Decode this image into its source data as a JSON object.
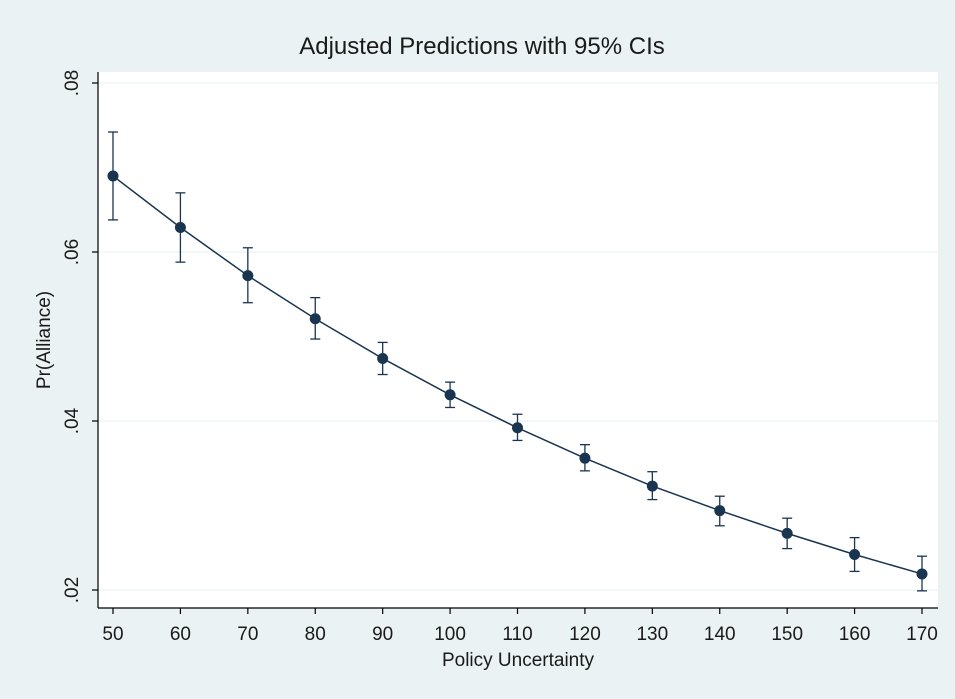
{
  "chart_data": {
    "type": "line",
    "title": "Adjusted Predictions with 95% CIs",
    "xlabel": "Policy Uncertainty",
    "ylabel": "Pr(Alliance)",
    "x": [
      50,
      60,
      70,
      80,
      90,
      100,
      110,
      120,
      130,
      140,
      150,
      160,
      170
    ],
    "series": [
      {
        "values": [
          0.069,
          0.0629,
          0.0572,
          0.0521,
          0.0474,
          0.0431,
          0.0392,
          0.0356,
          0.0323,
          0.0294,
          0.0267,
          0.0242,
          0.0219
        ],
        "ci_low": [
          0.0638,
          0.0588,
          0.054,
          0.0497,
          0.0455,
          0.0416,
          0.0377,
          0.0341,
          0.0307,
          0.0276,
          0.0249,
          0.0222,
          0.0199
        ],
        "ci_high": [
          0.0742,
          0.067,
          0.0605,
          0.0546,
          0.0493,
          0.0446,
          0.0408,
          0.0372,
          0.034,
          0.0311,
          0.0285,
          0.0262,
          0.024
        ]
      }
    ],
    "xlim": [
      50,
      170
    ],
    "ylim": [
      0.02,
      0.08
    ],
    "xticks": [
      50,
      60,
      70,
      80,
      90,
      100,
      110,
      120,
      130,
      140,
      150,
      160,
      170
    ],
    "xtick_labels": [
      "50",
      "60",
      "70",
      "80",
      "90",
      "100",
      "110",
      "120",
      "130",
      "140",
      "150",
      "160",
      "170"
    ],
    "yticks": [
      0.02,
      0.04,
      0.06,
      0.08
    ],
    "ytick_labels": [
      ".02",
      ".04",
      ".06",
      ".08"
    ],
    "grid": true,
    "colors": {
      "background": "#eaf2f3",
      "plot_area": "#ffffff",
      "series": "#1a3550",
      "gridline": "#eaf2f3",
      "axis": "#000000"
    }
  }
}
